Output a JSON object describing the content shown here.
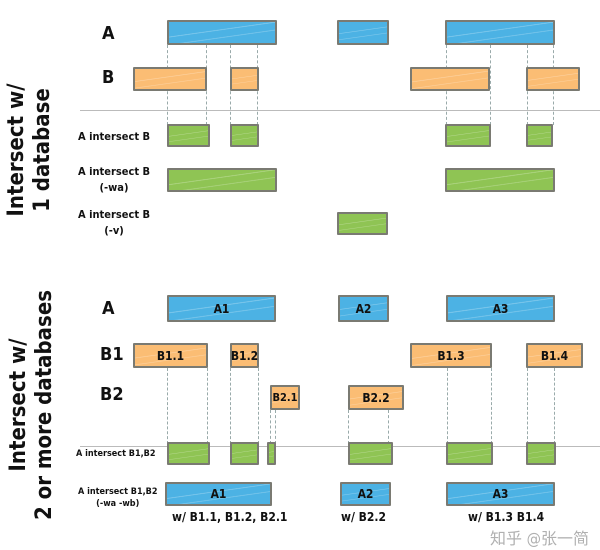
{
  "section1": {
    "title_line1": "Intersect w/",
    "title_line2": "1 database",
    "row_a": "A",
    "row_b": "B",
    "result1": "A intersect B",
    "result2_line1": "A intersect B",
    "result2_line2": "(-wa)",
    "result3_line1": "A intersect B",
    "result3_line2": "(-v)"
  },
  "section2": {
    "title_line1": "Intersect w/",
    "title_line2": "2 or more databases",
    "row_a": "A",
    "row_b1": "B1",
    "row_b2": "B2",
    "a_bars": [
      "A1",
      "A2",
      "A3"
    ],
    "b1_bars": [
      "B1.1",
      "B1.2",
      "B1.3",
      "B1.4"
    ],
    "b2_bars": [
      "B2.1",
      "B2.2"
    ],
    "result1": "A intersect B1,B2",
    "result2_line1": "A intersect B1,B2",
    "result2_line2": "(-wa -wb)",
    "result2_bars": [
      "A1",
      "A2",
      "A3"
    ],
    "notes": [
      "w/ B1.1, B1.2, B2.1",
      "w/ B2.2",
      "w/ B1.3 B1.4"
    ]
  },
  "watermark": "知乎 @张一简",
  "colors": {
    "a": "#4cb2e4",
    "b": "#fbbd74",
    "result": "#8fc454"
  }
}
